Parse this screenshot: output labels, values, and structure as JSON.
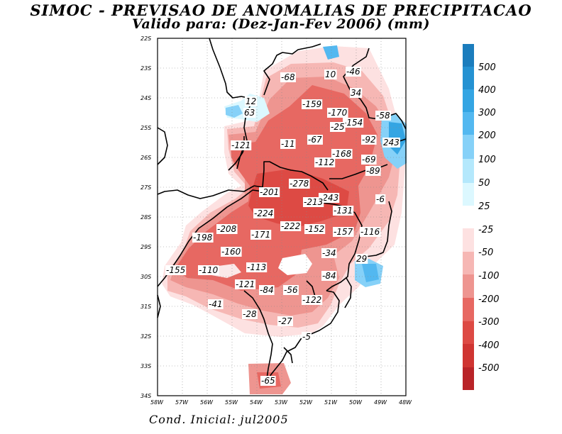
{
  "title_line1": "SIMOC - PREVISAO DE ANOMALIAS DE PRECIPITACAO",
  "title_line2": "Valido para: (Dez-Jan-Fev 2006) (mm)",
  "footer": "Cond. Inicial: jul2005",
  "lat_labels": [
    "22S",
    "23S",
    "24S",
    "25S",
    "26S",
    "27S",
    "28S",
    "29S",
    "30S",
    "31S",
    "32S",
    "33S",
    "34S"
  ],
  "lon_labels": [
    "58W",
    "57W",
    "56W",
    "55W",
    "54W",
    "53W",
    "52W",
    "51W",
    "50W",
    "49W",
    "48W"
  ],
  "legend": {
    "positive": [
      {
        "label": "500",
        "color": "#1b7dbd"
      },
      {
        "label": "400",
        "color": "#2592d2"
      },
      {
        "label": "300",
        "color": "#34a5e3"
      },
      {
        "label": "200",
        "color": "#53b8f0"
      },
      {
        "label": "100",
        "color": "#86d1f8"
      },
      {
        "label": "50",
        "color": "#b4e8fc"
      },
      {
        "label": "25",
        "color": "#dcf8ff"
      }
    ],
    "negative": [
      {
        "label": "-25",
        "color": "#fde1e1"
      },
      {
        "label": "-50",
        "color": "#f6b7b4"
      },
      {
        "label": "-100",
        "color": "#ee9590"
      },
      {
        "label": "-200",
        "color": "#e76862"
      },
      {
        "label": "-300",
        "color": "#dd4a44"
      },
      {
        "label": "-400",
        "color": "#cf3532"
      },
      {
        "label": "-500",
        "color": "#b92428"
      }
    ]
  },
  "values": [
    {
      "text": "-68"
    },
    {
      "text": "10"
    },
    {
      "text": "-46"
    },
    {
      "text": "34"
    },
    {
      "text": "12"
    },
    {
      "text": "63"
    },
    {
      "text": "-159"
    },
    {
      "text": "-170"
    },
    {
      "text": "-58"
    },
    {
      "text": "-154"
    },
    {
      "text": "-25"
    },
    {
      "text": "-67"
    },
    {
      "text": "-92"
    },
    {
      "text": "243"
    },
    {
      "text": "-121"
    },
    {
      "text": "-11"
    },
    {
      "text": "-168"
    },
    {
      "text": "-112"
    },
    {
      "text": "-69"
    },
    {
      "text": "-89"
    },
    {
      "text": "-278"
    },
    {
      "text": "-201"
    },
    {
      "text": "-243"
    },
    {
      "text": "-213"
    },
    {
      "text": "-6"
    },
    {
      "text": "-224"
    },
    {
      "text": "-131"
    },
    {
      "text": "-208"
    },
    {
      "text": "-222"
    },
    {
      "text": "-152"
    },
    {
      "text": "-157"
    },
    {
      "text": "-116"
    },
    {
      "text": "-198"
    },
    {
      "text": "-171"
    },
    {
      "text": "-160"
    },
    {
      "text": "-34"
    },
    {
      "text": "29"
    },
    {
      "text": "-155"
    },
    {
      "text": "-110"
    },
    {
      "text": "-113"
    },
    {
      "text": "-84"
    },
    {
      "text": "-121"
    },
    {
      "text": "-84"
    },
    {
      "text": "-56"
    },
    {
      "text": "-122"
    },
    {
      "text": "-41"
    },
    {
      "text": "-28"
    },
    {
      "text": "-27"
    },
    {
      "text": "-5"
    },
    {
      "text": "-65"
    }
  ]
}
